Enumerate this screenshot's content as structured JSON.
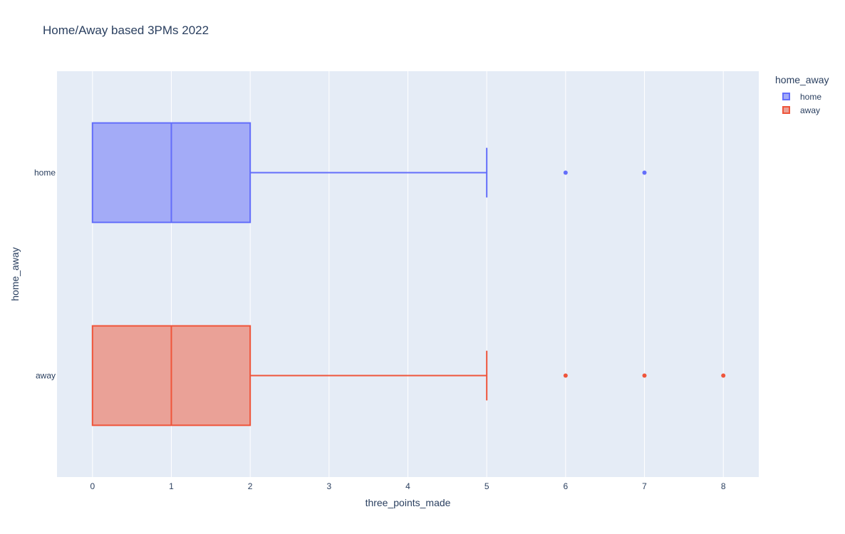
{
  "chart_data": {
    "type": "box",
    "orientation": "horizontal",
    "title": "Home/Away based 3PMs 2022",
    "xlabel": "three_points_made",
    "ylabel": "home_away",
    "xlim": [
      -0.45,
      8.45
    ],
    "xticks": [
      0,
      1,
      2,
      3,
      4,
      5,
      6,
      7,
      8
    ],
    "categories": [
      "home",
      "away"
    ],
    "grid": true,
    "legend": {
      "title": "home_away",
      "position": "top-right"
    },
    "series": [
      {
        "name": "home",
        "color": "#636efa",
        "fill": "#a3abf7",
        "min": 0,
        "q1": 0,
        "median": 1,
        "q3": 2,
        "whisker_high": 5,
        "outliers": [
          6,
          7
        ]
      },
      {
        "name": "away",
        "color": "#ef553b",
        "fill": "#eaa197",
        "min": 0,
        "q1": 0,
        "median": 1,
        "q3": 2,
        "whisker_high": 5,
        "outliers": [
          6,
          7,
          8
        ]
      }
    ]
  }
}
